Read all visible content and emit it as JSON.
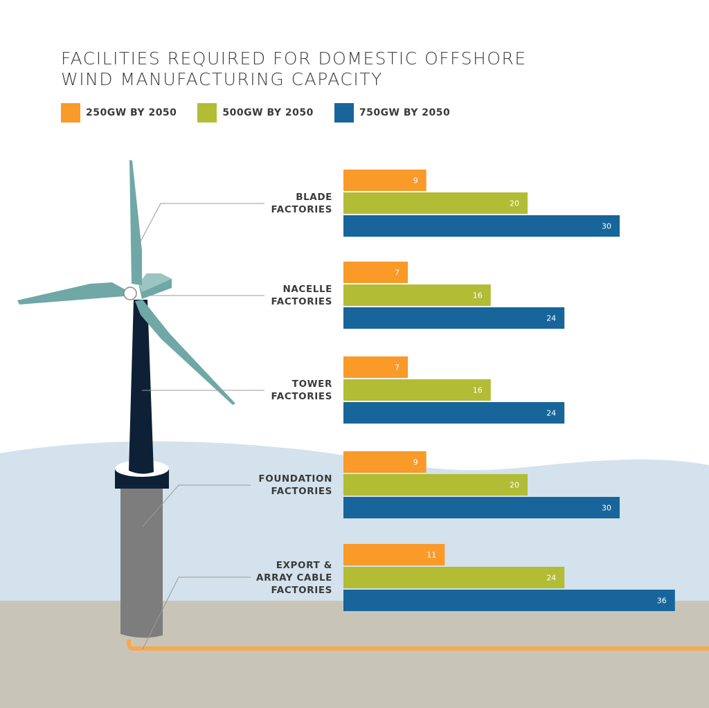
{
  "title_lines": [
    "FACILITIES REQUIRED FOR DOMESTIC OFFSHORE",
    "WIND MANUFACTURING CAPACITY"
  ],
  "colors": {
    "250GW": "#f99a29",
    "500GW": "#b2bc35",
    "750GW": "#17659b",
    "water": "#d3e2ec",
    "ground": "#c8c5b8",
    "blade": "#6fa8a6",
    "tower": "#0d2035",
    "pile": "#7c7d7c",
    "cable": "#f9a84d"
  },
  "chart_data": {
    "type": "bar",
    "orientation": "horizontal",
    "title": "FACILITIES REQUIRED FOR DOMESTIC OFFSHORE WIND MANUFACTURING CAPACITY",
    "categories": [
      "BLADE\nFACTORIES",
      "NACELLE\nFACTORIES",
      "TOWER\nFACTORIES",
      "FOUNDATION\nFACTORIES",
      "EXPORT &\nARRAY CABLE\nFACTORIES"
    ],
    "series": [
      {
        "name": "250GW BY 2050",
        "color": "#f99a29",
        "values": [
          9,
          7,
          7,
          9,
          11
        ]
      },
      {
        "name": "500GW BY 2050",
        "color": "#b2bc35",
        "values": [
          20,
          16,
          16,
          20,
          24
        ]
      },
      {
        "name": "750GW BY 2050",
        "color": "#17659b",
        "values": [
          30,
          24,
          24,
          30,
          36
        ]
      }
    ],
    "legend": "top-left",
    "grid": false,
    "axes_visible": false,
    "data_labels": true
  }
}
